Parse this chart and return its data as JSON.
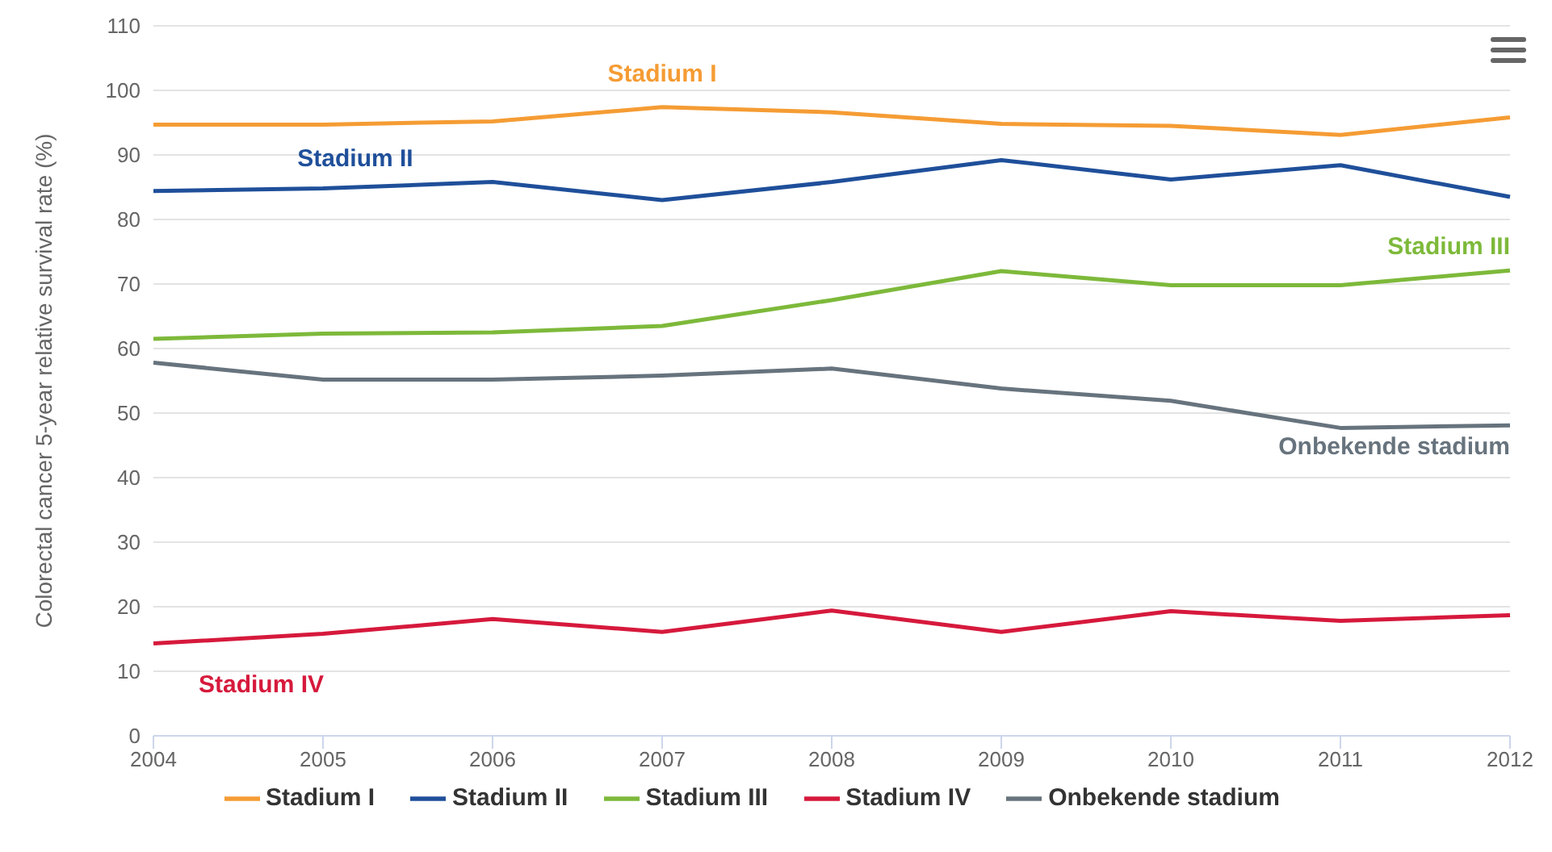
{
  "chart_data": {
    "type": "line",
    "ylabel": "Colorectal cancer 5-year relative survival rate (%)",
    "categories": [
      "2004",
      "2005",
      "2006",
      "2007",
      "2008",
      "2009",
      "2010",
      "2011",
      "2012"
    ],
    "series": [
      {
        "name": "Stadium I",
        "color": "#f59c34",
        "values": [
          94.7,
          94.7,
          95.2,
          97.4,
          96.6,
          94.8,
          94.5,
          93.1,
          95.8
        ]
      },
      {
        "name": "Stadium II",
        "color": "#1f4f9a",
        "values": [
          84.4,
          84.8,
          85.8,
          83.0,
          85.8,
          89.2,
          86.2,
          88.4,
          83.5
        ]
      },
      {
        "name": "Stadium III",
        "color": "#7db93a",
        "values": [
          61.5,
          62.3,
          62.5,
          63.5,
          67.5,
          72.0,
          69.8,
          69.8,
          72.1
        ]
      },
      {
        "name": "Stadium IV",
        "color": "#d6193c",
        "values": [
          14.3,
          15.8,
          18.1,
          16.1,
          19.4,
          16.1,
          19.3,
          17.8,
          18.7
        ]
      },
      {
        "name": "Onbekende stadium",
        "color": "#67737d",
        "values": [
          57.8,
          55.2,
          55.2,
          55.8,
          56.9,
          53.8,
          51.9,
          47.7,
          48.1
        ]
      }
    ],
    "ylim": [
      0,
      110
    ],
    "yticks": [
      0,
      10,
      20,
      30,
      40,
      50,
      60,
      70,
      80,
      90,
      100,
      110
    ],
    "grid": "y",
    "legend": "bottom",
    "marker": "none",
    "line_style": "solid"
  }
}
